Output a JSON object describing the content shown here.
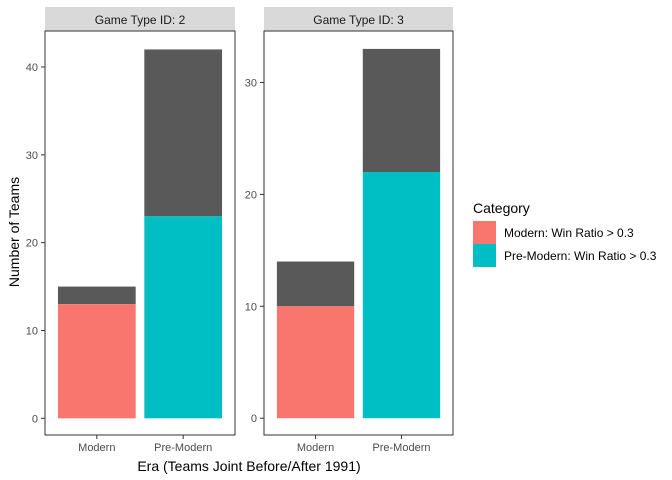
{
  "chart_data": {
    "type": "bar",
    "stacked": true,
    "xlabel": "Era (Teams Joint Before/After 1991)",
    "ylabel": "Number of Teams",
    "legend": {
      "title": "Category",
      "position": "right",
      "entries": [
        {
          "label": "Modern: Win Ratio > 0.3",
          "color": "#F8766D"
        },
        {
          "label": "Pre-Modern: Win Ratio > 0.3",
          "color": "#00BFC4"
        }
      ]
    },
    "remainder_color": "#595959",
    "grid": false,
    "panels": [
      {
        "strip": "Game Type ID: 2",
        "categories": [
          "Modern",
          "Pre-Modern"
        ],
        "highlight_values": [
          13,
          23
        ],
        "totals": [
          15,
          42
        ],
        "category_colors": [
          "#F8766D",
          "#00BFC4"
        ],
        "ylim": [
          -1.9,
          44.1
        ],
        "yticks": [
          0,
          10,
          20,
          30,
          40
        ]
      },
      {
        "strip": "Game Type ID: 3",
        "categories": [
          "Modern",
          "Pre-Modern"
        ],
        "highlight_values": [
          10,
          22
        ],
        "totals": [
          14,
          33
        ],
        "category_colors": [
          "#F8766D",
          "#00BFC4"
        ],
        "ylim": [
          -1.5,
          34.6
        ],
        "yticks": [
          0,
          10,
          20,
          30
        ]
      }
    ]
  }
}
